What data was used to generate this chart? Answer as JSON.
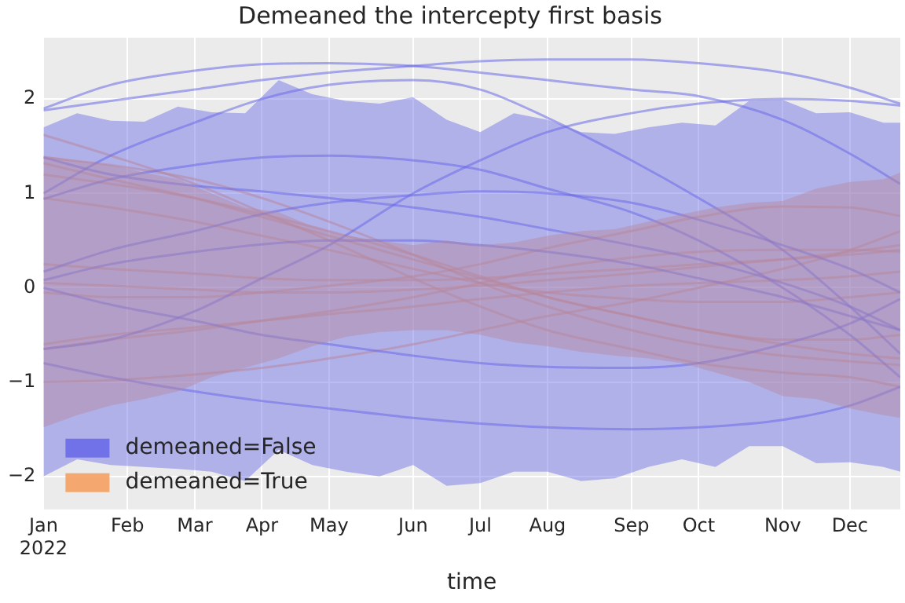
{
  "chart_data": {
    "type": "line",
    "title": "Demeaned the intercepty first basis",
    "xlabel": "time",
    "x": [
      "2022-01-03",
      "2022-01-31",
      "2022-03-07",
      "2022-04-04",
      "2022-05-02",
      "2022-06-06",
      "2022-07-04",
      "2022-08-01",
      "2022-09-05",
      "2022-10-03",
      "2022-11-07",
      "2022-12-05",
      "2022-12-26"
    ],
    "xlim": [
      "2022-01-03",
      "2022-12-26"
    ],
    "xticks": [
      {
        "value": "2022-01-03",
        "label": "Jan\n2022"
      },
      {
        "value": "2022-02-07",
        "label": "Feb"
      },
      {
        "value": "2022-03-07",
        "label": "Mar"
      },
      {
        "value": "2022-04-04",
        "label": "Apr"
      },
      {
        "value": "2022-05-02",
        "label": "May"
      },
      {
        "value": "2022-06-06",
        "label": "Jun"
      },
      {
        "value": "2022-07-04",
        "label": "Jul"
      },
      {
        "value": "2022-08-01",
        "label": "Aug"
      },
      {
        "value": "2022-09-05",
        "label": "Sep"
      },
      {
        "value": "2022-10-03",
        "label": "Oct"
      },
      {
        "value": "2022-11-07",
        "label": "Nov"
      },
      {
        "value": "2022-12-05",
        "label": "Dec"
      }
    ],
    "ylim": [
      -2.35,
      2.65
    ],
    "yticks": [
      -2,
      -1,
      0,
      1,
      2
    ],
    "grid": true,
    "legend": "bottom left",
    "marker": "none",
    "line_style": "solid",
    "series": [
      {
        "name": "demeaned=False",
        "type": "area",
        "color": "#6a6ae8",
        "x": [
          "2022-01-03",
          "2022-01-17",
          "2022-01-31",
          "2022-02-14",
          "2022-02-28",
          "2022-03-14",
          "2022-03-28",
          "2022-04-11",
          "2022-04-25",
          "2022-05-09",
          "2022-05-23",
          "2022-06-06",
          "2022-06-20",
          "2022-07-04",
          "2022-07-18",
          "2022-08-01",
          "2022-08-15",
          "2022-08-29",
          "2022-09-12",
          "2022-09-26",
          "2022-10-10",
          "2022-10-24",
          "2022-11-07",
          "2022-11-21",
          "2022-12-05",
          "2022-12-19",
          "2022-12-26"
        ],
        "values": [
          null,
          null,
          null,
          null,
          null,
          null,
          null,
          null,
          null,
          null,
          null,
          null,
          null,
          null,
          null,
          null,
          null,
          null,
          null,
          null,
          null,
          null,
          null,
          null,
          null,
          null,
          null
        ],
        "upper": [
          1.7,
          1.85,
          1.77,
          1.76,
          1.92,
          1.86,
          1.85,
          2.2,
          2.05,
          1.98,
          1.95,
          2.02,
          1.78,
          1.65,
          1.85,
          1.78,
          1.65,
          1.63,
          1.7,
          1.75,
          1.72,
          1.98,
          1.99,
          1.85,
          1.86,
          1.75,
          1.75
        ],
        "lower": [
          -2.0,
          -1.82,
          -1.88,
          -1.9,
          -1.92,
          -1.95,
          -2.05,
          -1.72,
          -1.88,
          -1.95,
          -2.0,
          -1.88,
          -2.1,
          -2.07,
          -1.95,
          -1.95,
          -2.05,
          -2.02,
          -1.9,
          -1.82,
          -1.9,
          -1.68,
          -1.68,
          -1.86,
          -1.85,
          -1.9,
          -1.95
        ]
      },
      {
        "name": "demeaned=True",
        "type": "area",
        "color": "#f5a060",
        "x": [
          "2022-01-03",
          "2022-01-17",
          "2022-01-31",
          "2022-02-14",
          "2022-02-28",
          "2022-03-14",
          "2022-03-28",
          "2022-04-11",
          "2022-04-25",
          "2022-05-09",
          "2022-05-23",
          "2022-06-06",
          "2022-06-20",
          "2022-07-04",
          "2022-07-18",
          "2022-08-01",
          "2022-08-15",
          "2022-08-29",
          "2022-09-12",
          "2022-09-26",
          "2022-10-10",
          "2022-10-24",
          "2022-11-07",
          "2022-11-21",
          "2022-12-05",
          "2022-12-19",
          "2022-12-26"
        ],
        "values": [
          null,
          null,
          null,
          null,
          null,
          null,
          null,
          null,
          null,
          null,
          null,
          null,
          null,
          null,
          null,
          null,
          null,
          null,
          null,
          null,
          null,
          null,
          null,
          null,
          null,
          null,
          null
        ],
        "upper": [
          1.4,
          1.35,
          1.3,
          1.22,
          1.15,
          1.0,
          0.85,
          0.8,
          0.65,
          0.55,
          0.5,
          0.45,
          0.5,
          0.45,
          0.48,
          0.55,
          0.6,
          0.62,
          0.7,
          0.78,
          0.85,
          0.9,
          0.92,
          1.05,
          1.12,
          1.15,
          1.22
        ],
        "lower": [
          -1.48,
          -1.35,
          -1.25,
          -1.18,
          -1.1,
          -0.95,
          -0.85,
          -0.75,
          -0.62,
          -0.52,
          -0.47,
          -0.45,
          -0.45,
          -0.5,
          -0.58,
          -0.62,
          -0.68,
          -0.72,
          -0.75,
          -0.8,
          -0.9,
          -1.0,
          -1.15,
          -1.18,
          -1.28,
          -1.35,
          -1.38
        ]
      },
      {
        "color": "#6a6ae8",
        "values": [
          1.9,
          2.15,
          2.3,
          2.37,
          2.38,
          2.35,
          2.28,
          2.2,
          2.1,
          2.03,
          1.78,
          1.42,
          1.1
        ]
      },
      {
        "color": "#6a6ae8",
        "values": [
          1.88,
          1.98,
          2.1,
          2.2,
          2.28,
          2.35,
          2.4,
          2.42,
          2.42,
          2.38,
          2.28,
          2.12,
          1.95
        ]
      },
      {
        "color": "#6a6ae8",
        "values": [
          1.0,
          1.4,
          1.75,
          2.0,
          2.15,
          2.2,
          2.1,
          1.8,
          1.35,
          0.95,
          0.4,
          -0.2,
          -0.7
        ]
      },
      {
        "color": "#6a6ae8",
        "values": [
          0.94,
          1.15,
          1.3,
          1.38,
          1.4,
          1.35,
          1.25,
          1.05,
          0.8,
          0.5,
          0.0,
          -0.5,
          -0.95
        ]
      },
      {
        "color": "#6a6ae8",
        "values": [
          1.38,
          1.2,
          1.08,
          1.02,
          0.95,
          0.85,
          0.75,
          0.62,
          0.45,
          0.3,
          0.05,
          -0.2,
          -0.45
        ]
      },
      {
        "color": "#6a6ae8",
        "values": [
          0.17,
          0.4,
          0.6,
          0.78,
          0.9,
          0.98,
          1.02,
          1.0,
          0.9,
          0.72,
          0.45,
          0.2,
          -0.05
        ]
      },
      {
        "color": "#6a6ae8",
        "values": [
          0.08,
          0.25,
          0.38,
          0.46,
          0.5,
          0.5,
          0.45,
          0.38,
          0.25,
          0.1,
          -0.1,
          -0.3,
          -0.45
        ]
      },
      {
        "color": "#6a6ae8",
        "values": [
          0.0,
          -0.18,
          -0.35,
          -0.5,
          -0.6,
          -0.72,
          -0.8,
          -0.84,
          -0.85,
          -0.8,
          -0.6,
          -0.38,
          -0.12
        ]
      },
      {
        "color": "#6a6ae8",
        "values": [
          -0.8,
          -0.95,
          -1.1,
          -1.2,
          -1.28,
          -1.38,
          -1.44,
          -1.48,
          -1.5,
          -1.48,
          -1.4,
          -1.25,
          -1.05
        ]
      },
      {
        "color": "#6a6ae8",
        "values": [
          -0.65,
          -0.55,
          -0.25,
          0.1,
          0.45,
          1.0,
          1.35,
          1.65,
          1.85,
          1.95,
          2.0,
          1.98,
          1.93
        ]
      },
      {
        "color": "#f5a060",
        "values": [
          1.62,
          1.4,
          1.1,
          0.8,
          0.5,
          0.1,
          -0.2,
          -0.45,
          -0.65,
          -0.8,
          -0.9,
          -0.95,
          -1.05
        ]
      },
      {
        "color": "#f5a060",
        "values": [
          1.38,
          1.3,
          1.15,
          0.95,
          0.7,
          0.35,
          0.05,
          -0.2,
          -0.45,
          -0.6,
          -0.72,
          -0.78,
          -0.82
        ]
      },
      {
        "color": "#f5a060",
        "values": [
          1.32,
          1.15,
          0.95,
          0.75,
          0.55,
          0.3,
          0.1,
          -0.1,
          -0.3,
          -0.45,
          -0.6,
          -0.7,
          -0.75
        ]
      },
      {
        "color": "#f5a060",
        "values": [
          1.2,
          1.1,
          0.95,
          0.78,
          0.6,
          0.35,
          0.12,
          -0.1,
          -0.3,
          -0.45,
          -0.55,
          -0.55,
          -0.5
        ]
      },
      {
        "color": "#f5a060",
        "values": [
          0.95,
          0.85,
          0.7,
          0.55,
          0.4,
          0.2,
          0.05,
          -0.05,
          -0.12,
          -0.15,
          -0.15,
          -0.1,
          -0.05
        ]
      },
      {
        "color": "#f5a060",
        "values": [
          0.25,
          0.2,
          0.15,
          0.1,
          0.08,
          0.08,
          0.1,
          0.15,
          0.2,
          0.25,
          0.3,
          0.35,
          0.4
        ]
      },
      {
        "color": "#f5a060",
        "values": [
          0.05,
          0.02,
          -0.02,
          -0.05,
          -0.05,
          -0.02,
          0.02,
          0.08,
          0.15,
          0.22,
          0.3,
          0.38,
          0.45
        ]
      },
      {
        "color": "#f5a060",
        "values": [
          -0.05,
          -0.1,
          -0.1,
          -0.05,
          0.02,
          0.12,
          0.25,
          0.42,
          0.6,
          0.75,
          0.86,
          0.85,
          0.76
        ]
      },
      {
        "color": "#f5a060",
        "values": [
          -0.6,
          -0.5,
          -0.42,
          -0.35,
          -0.28,
          -0.2,
          -0.12,
          -0.05,
          0.02,
          0.05,
          0.08,
          0.12,
          0.17
        ]
      },
      {
        "color": "#f5a060",
        "values": [
          -0.65,
          -0.55,
          -0.45,
          -0.35,
          -0.25,
          -0.1,
          0.05,
          0.2,
          0.32,
          0.38,
          0.4,
          0.4,
          0.38
        ]
      },
      {
        "color": "#f5a060",
        "values": [
          -1.0,
          -0.98,
          -0.92,
          -0.85,
          -0.75,
          -0.6,
          -0.45,
          -0.3,
          -0.15,
          0.0,
          0.2,
          0.4,
          0.6
        ]
      }
    ]
  }
}
